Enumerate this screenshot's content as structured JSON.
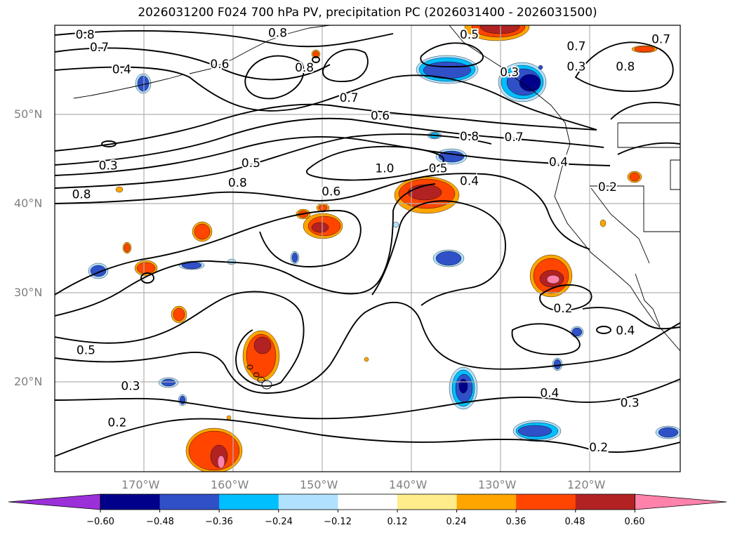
{
  "title": "2026031200 F024 700 hPa PV, precipitation PC (2026031400 - 2026031500)",
  "axes": {
    "lat_labels": [
      "50°N",
      "40°N",
      "30°N",
      "20°N"
    ],
    "lon_labels": [
      "170°W",
      "160°W",
      "150°W",
      "140°W",
      "130°W",
      "120°W"
    ]
  },
  "colorbar": {
    "colors": [
      "#9b30d9",
      "#00008b",
      "#3050c8",
      "#00bfff",
      "#b0e2ff",
      "#ffffff",
      "#ffec8b",
      "#ffa500",
      "#ff4500",
      "#b22222",
      "#ff82ab"
    ],
    "tick_labels": [
      "−0.60",
      "−0.48",
      "−0.36",
      "−0.24",
      "−0.12",
      "0.12",
      "0.24",
      "0.36",
      "0.48",
      "0.60"
    ]
  },
  "contour_labels": [
    {
      "text": "0.8",
      "lon": -176.6,
      "lat": 58.9
    },
    {
      "text": "0.7",
      "lon": -175.0,
      "lat": 57.5
    },
    {
      "text": "0.8",
      "lon": -155.0,
      "lat": 59.1
    },
    {
      "text": "0.6",
      "lon": -161.5,
      "lat": 55.6
    },
    {
      "text": "0.8",
      "lon": -152.0,
      "lat": 55.2
    },
    {
      "text": "0.4",
      "lon": -172.5,
      "lat": 55.0
    },
    {
      "text": "0.5",
      "lon": -133.5,
      "lat": 58.9
    },
    {
      "text": "0.3",
      "lon": -129.0,
      "lat": 54.7
    },
    {
      "text": "0.7",
      "lon": -121.5,
      "lat": 57.6
    },
    {
      "text": "0.8",
      "lon": -116.0,
      "lat": 55.3
    },
    {
      "text": "0.3",
      "lon": -121.5,
      "lat": 55.3
    },
    {
      "text": "0.7",
      "lon": -112.0,
      "lat": 58.4
    },
    {
      "text": "0.7",
      "lon": -147.0,
      "lat": 51.8
    },
    {
      "text": "0.6",
      "lon": -143.5,
      "lat": 49.8
    },
    {
      "text": "0.8",
      "lon": -133.5,
      "lat": 47.5
    },
    {
      "text": "0.7",
      "lon": -128.5,
      "lat": 47.4
    },
    {
      "text": "1.0",
      "lon": -143.0,
      "lat": 43.9
    },
    {
      "text": "0.5",
      "lon": -137.0,
      "lat": 43.9
    },
    {
      "text": "0.4",
      "lon": -123.5,
      "lat": 44.6
    },
    {
      "text": "0.4",
      "lon": -133.5,
      "lat": 42.5
    },
    {
      "text": "0.3",
      "lon": -174.0,
      "lat": 44.2
    },
    {
      "text": "0.5",
      "lon": -158.0,
      "lat": 44.5
    },
    {
      "text": "0.8",
      "lon": -159.5,
      "lat": 42.3
    },
    {
      "text": "0.8",
      "lon": -177.0,
      "lat": 41.0
    },
    {
      "text": "0.6",
      "lon": -149.0,
      "lat": 41.3
    },
    {
      "text": "0.2",
      "lon": -118.0,
      "lat": 41.8
    },
    {
      "text": "0.2",
      "lon": -123.0,
      "lat": 28.2
    },
    {
      "text": "0.4",
      "lon": -116.0,
      "lat": 25.7
    },
    {
      "text": "0.5",
      "lon": -176.5,
      "lat": 23.5
    },
    {
      "text": "0.4",
      "lon": -124.5,
      "lat": 18.7
    },
    {
      "text": "0.3",
      "lon": -171.5,
      "lat": 19.5
    },
    {
      "text": "0.3",
      "lon": -115.5,
      "lat": 17.6
    },
    {
      "text": "0.2",
      "lon": -173.0,
      "lat": 15.4
    },
    {
      "text": "0.2",
      "lon": -119.0,
      "lat": 12.6
    }
  ]
}
